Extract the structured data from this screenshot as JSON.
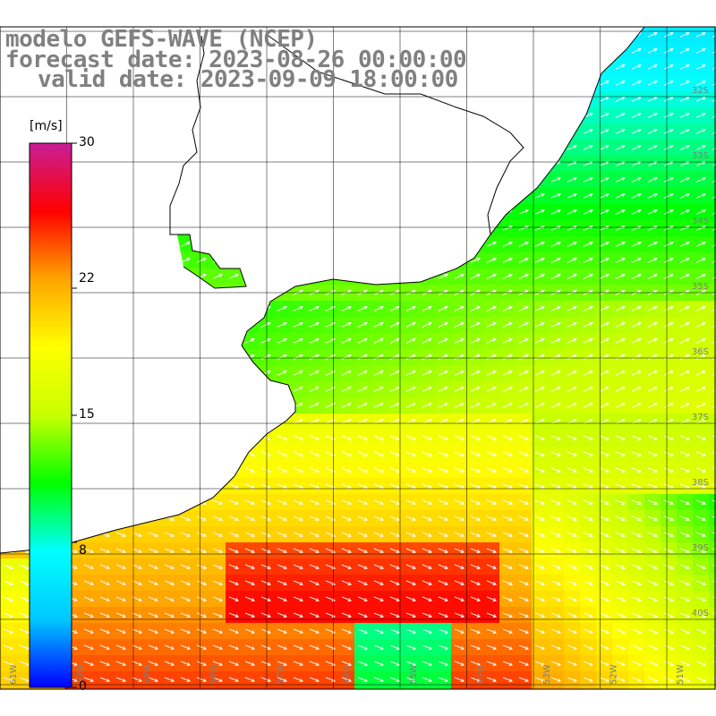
{
  "titles": {
    "model": "modelo GEFS-WAVE (NCEP)",
    "forecast": "forecast date: 2023-08-26 00:00:00",
    "valid": "valid date: 2023-09-09 18:00:00"
  },
  "colorbar": {
    "unit": "[m/s]",
    "ticks": [
      "30",
      "22",
      "15",
      "8",
      "0"
    ],
    "stops": [
      "#0000ff",
      "#00c8ff",
      "#00ffff",
      "#00ff00",
      "#c8ff00",
      "#ffff00",
      "#ffa500",
      "#ff0000",
      "#c81e96"
    ]
  },
  "lon_labels": [
    "61W",
    "60W",
    "59W",
    "58W",
    "57W",
    "56W",
    "55W",
    "54W",
    "53W",
    "52W",
    "51W"
  ],
  "lat_labels": [
    "32S",
    "33S",
    "34S",
    "35S",
    "36S",
    "37S",
    "38S",
    "39S",
    "40S"
  ],
  "colors": {
    "land": "#ffffff",
    "grid": "#000000",
    "arrow": "#ffffff"
  },
  "field": {
    "variable": "wind speed",
    "unit": "m/s",
    "range": [
      0,
      30
    ]
  }
}
